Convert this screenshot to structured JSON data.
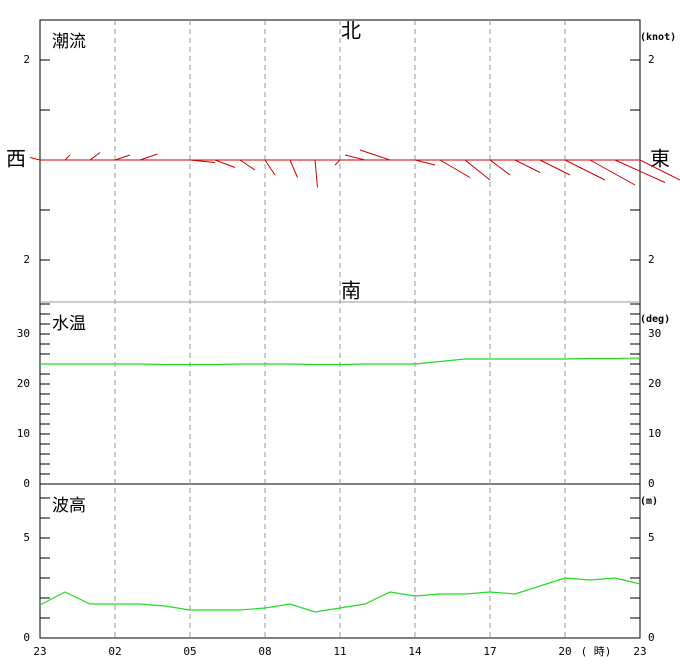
{
  "chart_data": [
    {
      "type": "vector",
      "title": "潮流",
      "unit": "(knot)",
      "north": "北",
      "south": "南",
      "west": "西",
      "east": "東",
      "series": [
        {
          "name": "east",
          "values": [
            -0.2,
            0.1,
            0.2,
            0.3,
            0.35,
            0.4,
            0.5,
            0.4,
            0.3,
            0.2,
            0.15,
            0.05,
            -0.1,
            -0.4,
            -0.6,
            0.4,
            0.6,
            0.5,
            0.4,
            0.5,
            0.6,
            0.8,
            0.9,
            1.0,
            0.8
          ]
        },
        {
          "name": "north",
          "values": [
            0.05,
            0.1,
            0.15,
            0.1,
            0.12,
            0.0,
            -0.05,
            -0.15,
            -0.2,
            -0.3,
            -0.35,
            -0.55,
            -0.1,
            0.1,
            0.2,
            -0.1,
            -0.35,
            -0.4,
            -0.3,
            -0.25,
            -0.3,
            -0.4,
            -0.5,
            -0.45,
            -0.4
          ]
        }
      ],
      "color": "#cc0000",
      "ylim": [
        -2.84,
        2.8
      ],
      "yticks": [
        {
          "value": 2,
          "label": "2"
        },
        {
          "value": -2,
          "label": "2"
        }
      ],
      "minor_yticks": [
        -2,
        -1,
        0,
        1,
        2
      ]
    },
    {
      "type": "line",
      "title": "水温",
      "unit": "(deg)",
      "color": "#22dd22",
      "values": [
        24,
        24,
        24,
        24,
        24,
        23.9,
        23.9,
        23.9,
        24,
        24,
        24,
        23.9,
        23.9,
        24,
        24,
        24,
        24.5,
        25,
        25,
        25,
        25,
        25,
        25.1,
        25.1,
        25.2
      ],
      "ylim": [
        0,
        36.4
      ],
      "yticks": [
        0,
        10,
        20,
        30
      ],
      "minor_yticks": [
        0,
        2,
        4,
        6,
        8,
        10,
        12,
        14,
        16,
        18,
        20,
        22,
        24,
        26,
        28,
        30,
        32,
        34,
        36
      ]
    },
    {
      "type": "line",
      "title": "波高",
      "unit": "(m)",
      "color": "#22dd22",
      "values": [
        1.65,
        2.3,
        1.7,
        1.7,
        1.7,
        1.6,
        1.4,
        1.4,
        1.4,
        1.5,
        1.7,
        1.3,
        1.5,
        1.7,
        2.3,
        2.1,
        2.2,
        2.2,
        2.3,
        2.2,
        2.6,
        3.0,
        2.9,
        3.0,
        2.7
      ],
      "ylim": [
        0,
        7.7
      ],
      "yticks": [
        0,
        5
      ],
      "minor_yticks": [
        0,
        1,
        2,
        3,
        4,
        5,
        6,
        7
      ],
      "categories": [
        "23",
        null,
        null,
        "02",
        null,
        null,
        "05",
        null,
        null,
        "08",
        null,
        null,
        "11",
        null,
        null,
        "14",
        null,
        null,
        "17",
        null,
        null,
        "20",
        null,
        null,
        "23"
      ],
      "xlabel": "( 時)"
    }
  ]
}
